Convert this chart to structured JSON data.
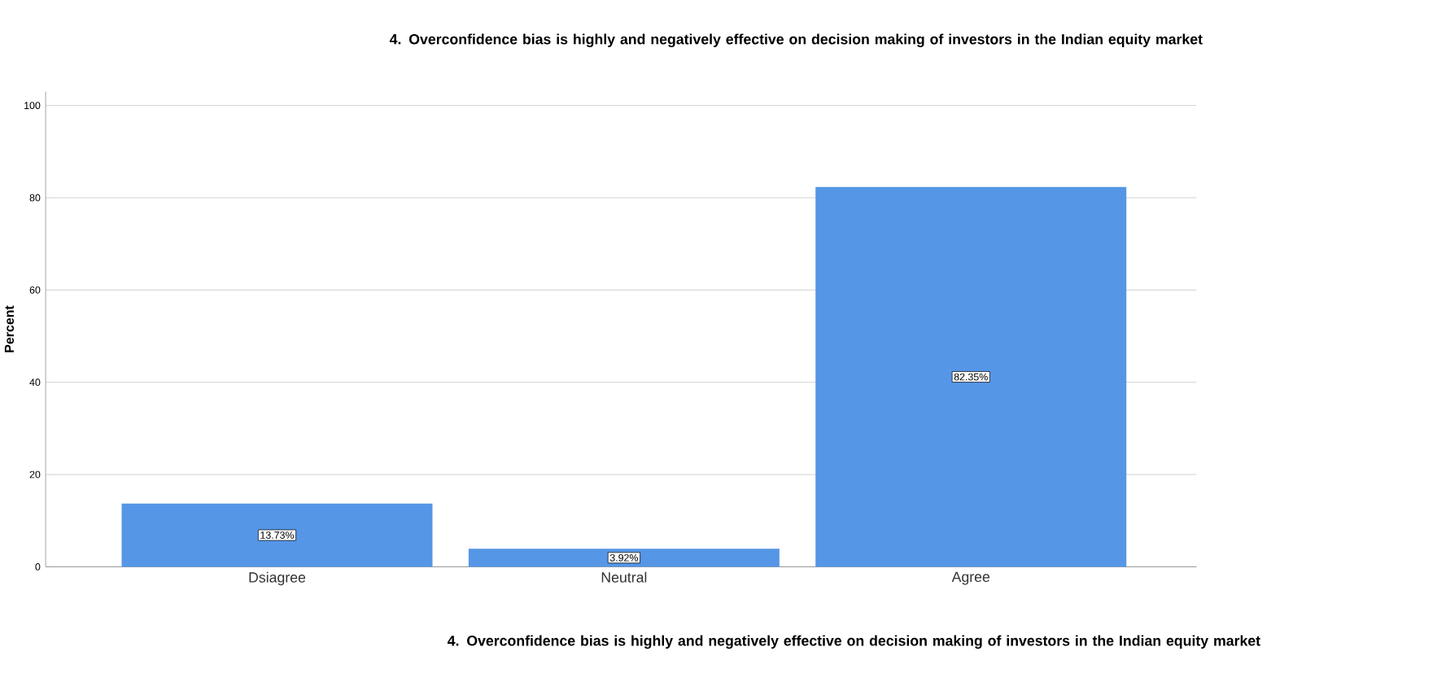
{
  "chart_data": {
    "type": "bar",
    "title": "4. Overconfidence bias is highly and negatively effective on decision making of investors in the Indian equity market",
    "xlabel": "4. Overconfidence bias is highly and negatively effective on decision making of investors in the Indian equity market",
    "ylabel": "Percent",
    "categories": [
      "Dsiagree",
      "Neutral",
      "Agree"
    ],
    "values": [
      13.73,
      3.92,
      82.35
    ],
    "value_labels": [
      "13.73%",
      "3.92%",
      "82.35%"
    ],
    "color": "#5596e6",
    "ylim": [
      0,
      103
    ],
    "yticks": [
      0,
      20,
      40,
      60,
      80,
      100
    ],
    "grid": "y"
  }
}
